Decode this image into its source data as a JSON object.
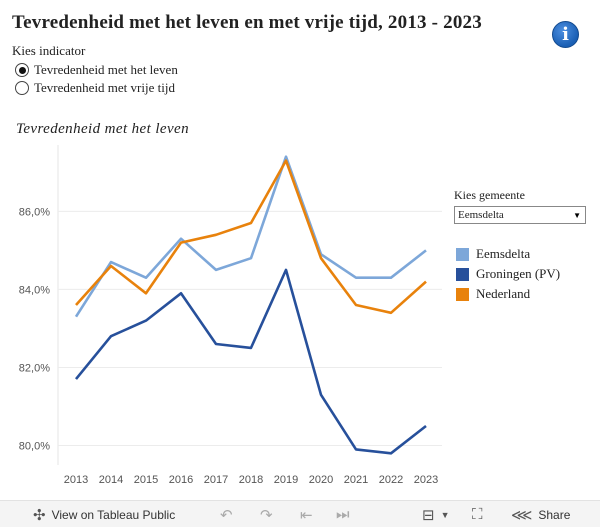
{
  "title": "Tevredenheid met het leven en met vrije tijd, 2013 - 2023",
  "info_icon": "info-icon",
  "indicator": {
    "label": "Kies indicator",
    "options": [
      {
        "label": "Tevredenheid met het leven",
        "selected": true
      },
      {
        "label": "Tevredenheid met vrije tijd",
        "selected": false
      }
    ]
  },
  "gemeente": {
    "label": "Kies gemeente",
    "selected": "Eemsdelta"
  },
  "chart_data": {
    "type": "line",
    "title": "Tevredenheid met het leven",
    "xlabel": "",
    "ylabel": "",
    "x": [
      "2013",
      "2014",
      "2015",
      "2016",
      "2017",
      "2018",
      "2019",
      "2020",
      "2021",
      "2022",
      "2023"
    ],
    "ylim": [
      79.5,
      87.7
    ],
    "yticks": [
      80,
      82,
      84,
      86
    ],
    "ytick_labels": [
      "80,0%",
      "82,0%",
      "84,0%",
      "86,0%"
    ],
    "grid": true,
    "legend_position": "right",
    "series": [
      {
        "name": "Eemsdelta",
        "color": "#7da7d9",
        "values": [
          83.3,
          84.7,
          84.3,
          85.3,
          84.5,
          84.8,
          87.4,
          84.9,
          84.3,
          84.3,
          85.0
        ]
      },
      {
        "name": "Groningen (PV)",
        "color": "#27509b",
        "values": [
          81.7,
          82.8,
          83.2,
          83.9,
          82.6,
          82.5,
          84.5,
          81.3,
          79.9,
          79.8,
          80.5
        ]
      },
      {
        "name": "Nederland",
        "color": "#e8820c",
        "values": [
          83.6,
          84.6,
          83.9,
          85.2,
          85.4,
          85.7,
          87.3,
          84.8,
          83.6,
          83.4,
          84.2
        ]
      }
    ]
  },
  "footer": {
    "view_label": "View on Tableau Public",
    "share_label": "Share"
  }
}
